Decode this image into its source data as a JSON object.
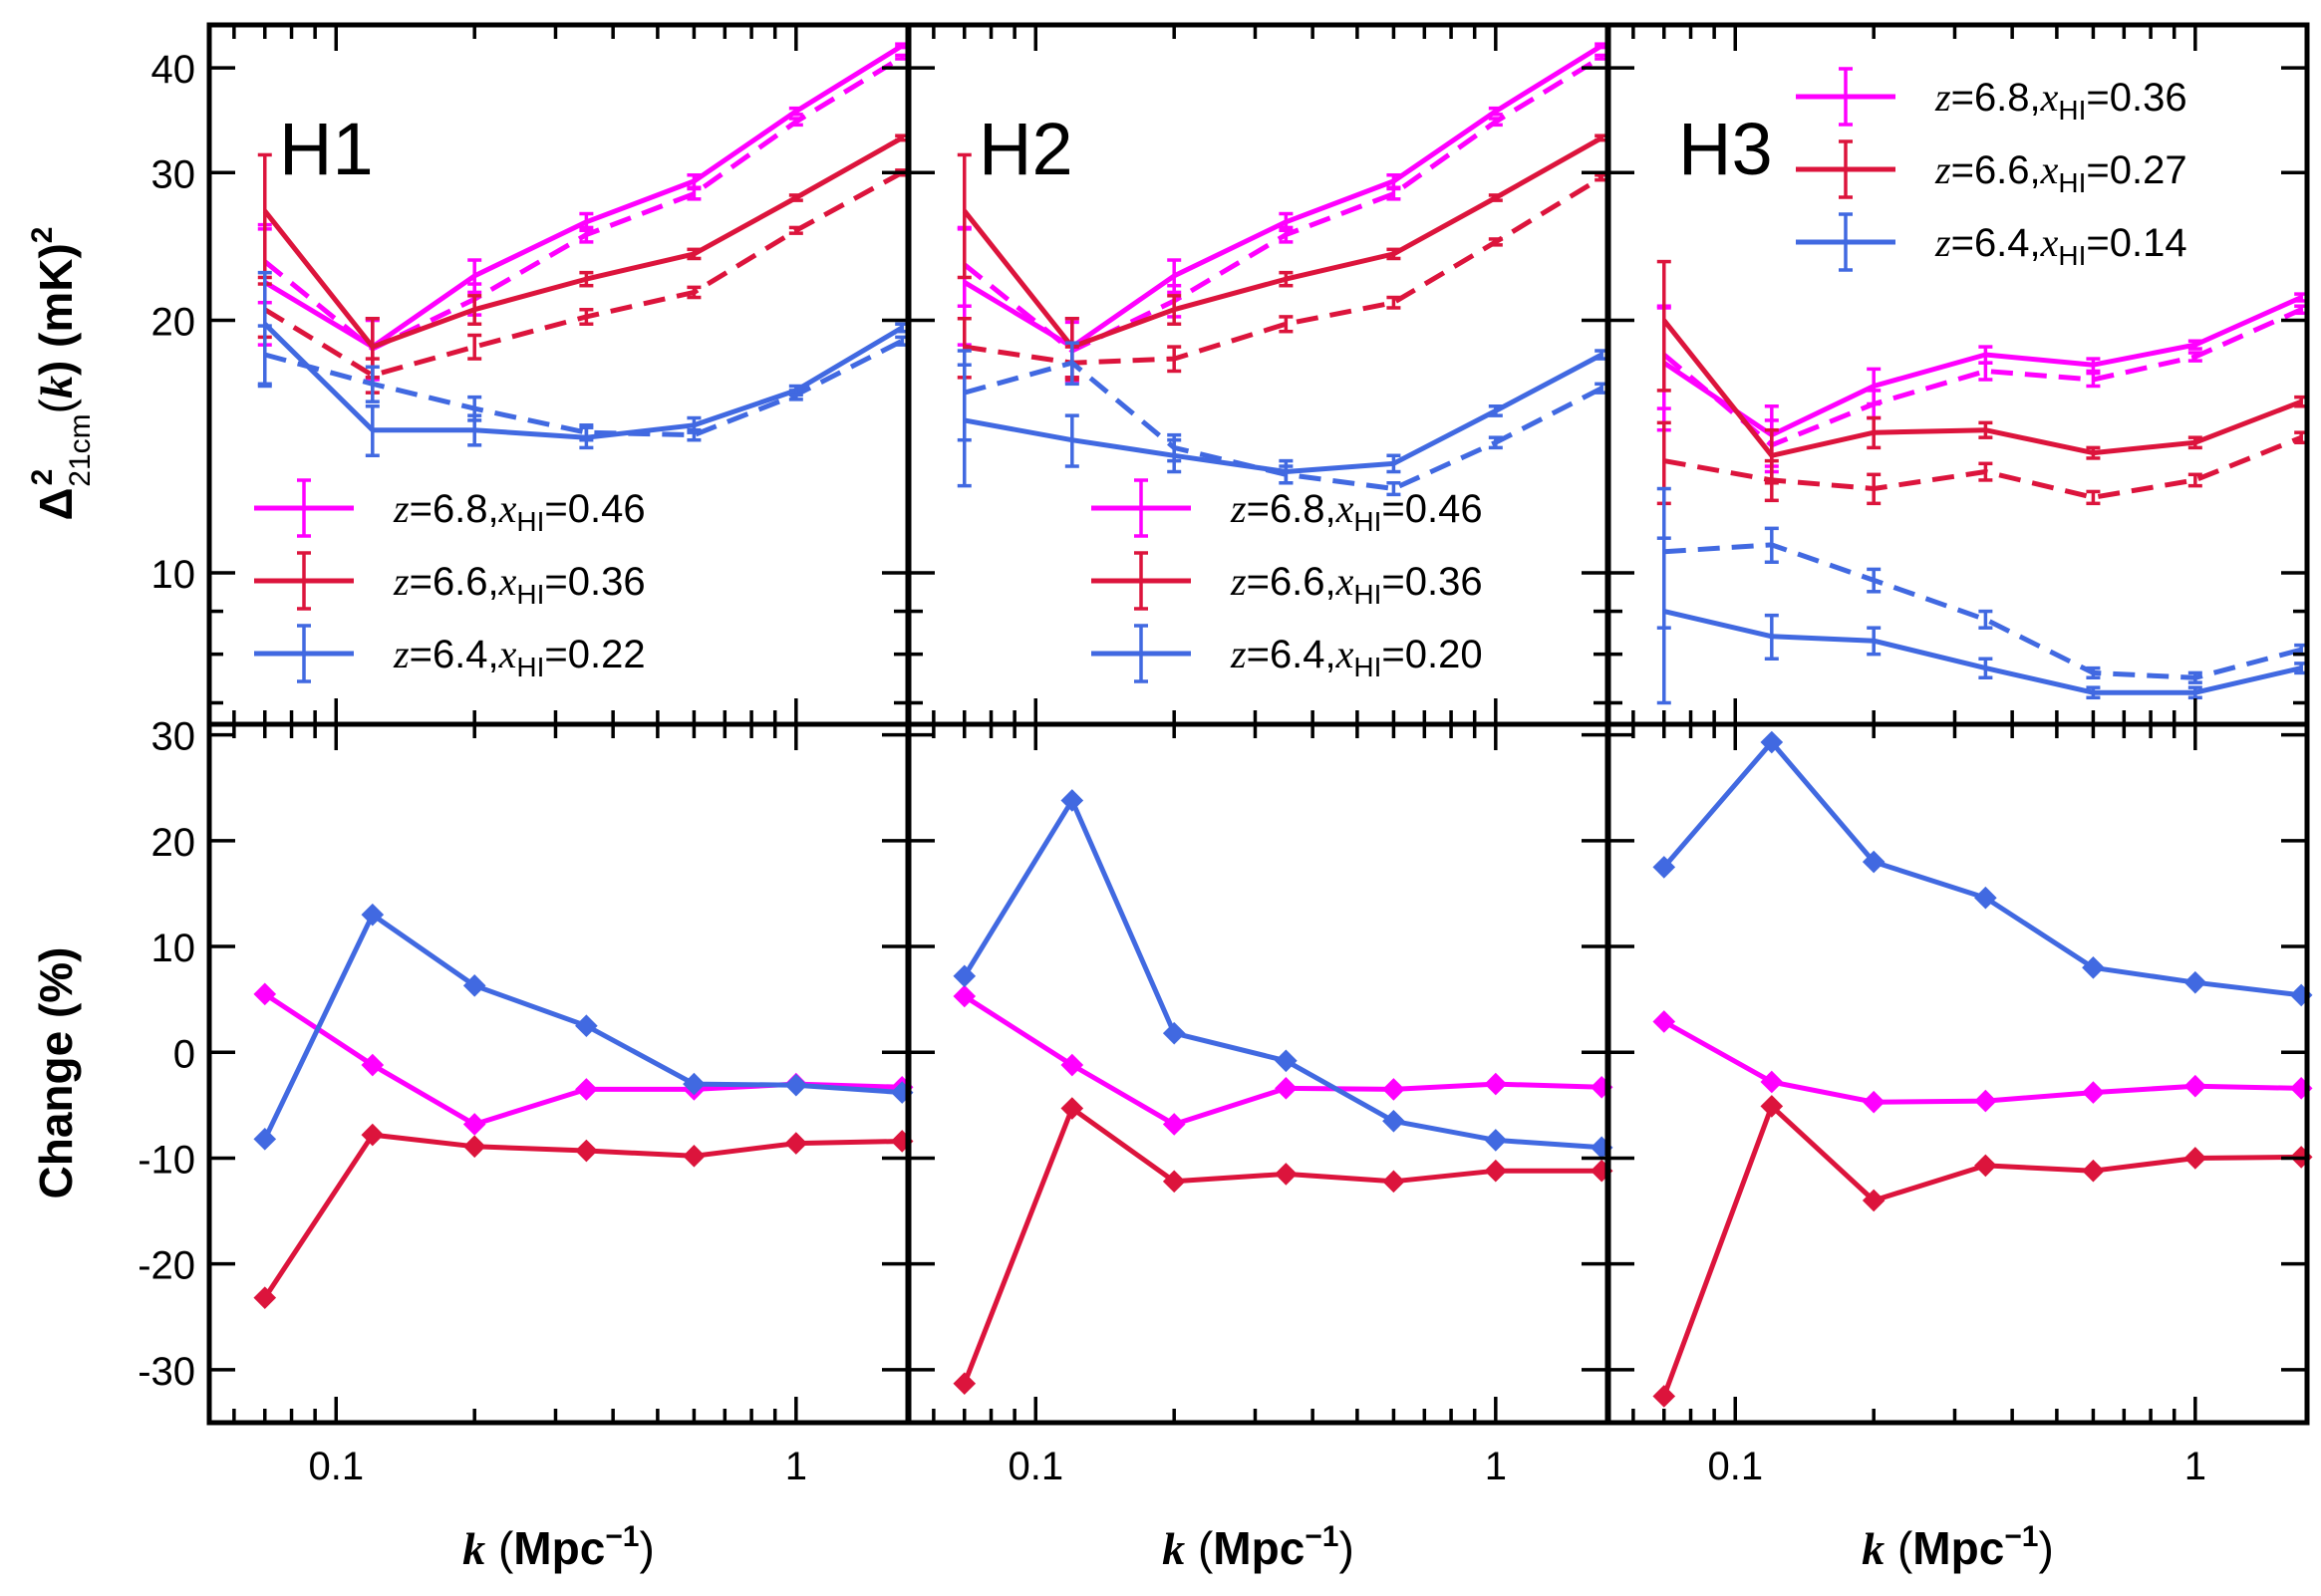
{
  "chart_data": {
    "type": "line",
    "x": [
      0.07,
      0.12,
      0.2,
      0.35,
      0.6,
      1.0,
      1.7
    ],
    "xscale": "log",
    "xlim": [
      0.053,
      1.75
    ],
    "xticks": [
      {
        "value": 0.1,
        "label": "0.1"
      },
      {
        "value": 1,
        "label": "1"
      }
    ],
    "xlabel": {
      "var": "k",
      "unit_pre": " (",
      "unit": "Mpc",
      "sup": "−1",
      "post": ")"
    },
    "top": {
      "yscale": "log",
      "ylim": [
        6.6,
        45
      ],
      "yticks": [
        {
          "value": 10,
          "label": "10"
        },
        {
          "value": 20,
          "label": "20"
        },
        {
          "value": 30,
          "label": "30"
        },
        {
          "value": 40,
          "label": "40"
        }
      ],
      "ylabel": "Δ²21cm(k) (mK)²"
    },
    "bottom": {
      "yscale": "linear",
      "ylim": [
        -35,
        31
      ],
      "yticks": [
        {
          "value": 30,
          "label": "30"
        },
        {
          "value": 20,
          "label": "20"
        },
        {
          "value": 10,
          "label": "10"
        },
        {
          "value": 0,
          "label": "0"
        },
        {
          "value": -10,
          "label": "-10"
        },
        {
          "value": -20,
          "label": "-20"
        },
        {
          "value": -30,
          "label": "-30"
        }
      ],
      "ylabel": "Change (%)"
    },
    "linestyles": {
      "solid": "solid",
      "dashed": "dashed"
    },
    "panels": [
      {
        "title": "H1",
        "legend_position": "lower-left",
        "series": [
          {
            "name": "z=6.8, x_HI=0.46",
            "z": "6.8",
            "xhi": "0.46",
            "color": "#ff00ff",
            "solid": [
              22.2,
              18.6,
              22.6,
              26.2,
              29.3,
              35.5,
              42.5
            ],
            "dashed": [
              23.5,
              18.5,
              21.2,
              25.3,
              28.3,
              34.5,
              41.2
            ],
            "solid_err": [
              3.5,
              1.5,
              1.0,
              0.6,
              0.5,
              0.3,
              0.2
            ],
            "dashed_err": [
              2.5,
              1.5,
              0.9,
              0.5,
              0.4,
              0.3,
              0.2
            ],
            "change": [
              5.5,
              -1.2,
              -6.8,
              -3.5,
              -3.5,
              -3.0,
              -3.3
            ]
          },
          {
            "name": "z=6.6, x_HI=0.36",
            "z": "6.6",
            "xhi": "0.36",
            "color": "#dc143c",
            "solid": [
              27.0,
              18.6,
              20.6,
              22.4,
              24.0,
              28.0,
              33.0
            ],
            "dashed": [
              20.6,
              17.2,
              18.6,
              20.2,
              21.6,
              25.6,
              30.0
            ],
            "solid_err": [
              4.5,
              1.5,
              0.8,
              0.4,
              0.3,
              0.2,
              0.2
            ],
            "dashed_err": [
              1.5,
              0.8,
              0.6,
              0.4,
              0.3,
              0.2,
              0.2
            ],
            "change": [
              -23.2,
              -7.8,
              -8.9,
              -9.3,
              -9.8,
              -8.6,
              -8.4
            ]
          },
          {
            "name": "z=6.4, x_HI=0.22",
            "z": "6.4",
            "xhi": "0.22",
            "color": "#4169e1",
            "solid": [
              19.8,
              14.8,
              14.8,
              14.5,
              15.0,
              16.5,
              19.6
            ],
            "dashed": [
              18.2,
              16.8,
              15.7,
              14.7,
              14.6,
              16.3,
              18.9
            ],
            "solid_err": [
              3.0,
              1.0,
              0.6,
              0.4,
              0.3,
              0.2,
              0.2
            ],
            "dashed_err": [
              1.5,
              0.8,
              0.5,
              0.3,
              0.2,
              0.2,
              0.2
            ],
            "change": [
              -8.2,
              13.0,
              6.3,
              2.5,
              -3.0,
              -3.1,
              -3.8
            ]
          }
        ]
      },
      {
        "title": "H2",
        "legend_position": "lower-right",
        "series": [
          {
            "name": "z=6.8, x_HI=0.46",
            "z": "6.8",
            "xhi": "0.46",
            "color": "#ff00ff",
            "solid": [
              22.2,
              18.6,
              22.6,
              26.2,
              29.3,
              35.5,
              42.5
            ],
            "dashed": [
              23.3,
              18.4,
              21.1,
              25.3,
              28.3,
              34.5,
              41.2
            ],
            "solid_err": [
              3.5,
              1.5,
              1.0,
              0.6,
              0.5,
              0.3,
              0.2
            ],
            "dashed_err": [
              2.5,
              1.5,
              0.9,
              0.5,
              0.4,
              0.3,
              0.2
            ],
            "change": [
              5.3,
              -1.2,
              -6.8,
              -3.4,
              -3.5,
              -3.0,
              -3.3
            ]
          },
          {
            "name": "z=6.6, x_HI=0.36",
            "z": "6.6",
            "xhi": "0.36",
            "color": "#dc143c",
            "solid": [
              27.0,
              18.6,
              20.6,
              22.4,
              24.0,
              28.0,
              33.0
            ],
            "dashed": [
              18.6,
              17.8,
              18.0,
              19.8,
              21.0,
              24.8,
              29.6
            ],
            "solid_err": [
              4.5,
              1.5,
              0.8,
              0.4,
              0.3,
              0.2,
              0.2
            ],
            "dashed_err": [
              1.5,
              0.8,
              0.6,
              0.4,
              0.3,
              0.2,
              0.2
            ],
            "change": [
              -31.3,
              -5.3,
              -12.2,
              -11.5,
              -12.2,
              -11.2,
              -11.2
            ]
          },
          {
            "name": "z=6.4, x_HI=0.20",
            "z": "6.4",
            "xhi": "0.20",
            "color": "#4169e1",
            "solid": [
              15.2,
              14.4,
              13.8,
              13.2,
              13.5,
              15.6,
              18.2
            ],
            "dashed": [
              16.4,
              17.8,
              14.1,
              13.1,
              12.6,
              14.3,
              16.6
            ],
            "solid_err": [
              2.5,
              1.0,
              0.6,
              0.4,
              0.3,
              0.2,
              0.2
            ],
            "dashed_err": [
              2.0,
              1.0,
              0.5,
              0.3,
              0.2,
              0.2,
              0.2
            ],
            "change": [
              7.2,
              23.8,
              1.8,
              -0.8,
              -6.5,
              -8.3,
              -9.0
            ]
          }
        ]
      },
      {
        "title": "H3",
        "legend_position": "upper-right",
        "series": [
          {
            "name": "z=6.8, x_HI=0.36",
            "z": "6.8",
            "xhi": "0.36",
            "color": "#ff00ff",
            "solid": [
              17.8,
              14.6,
              16.7,
              18.2,
              17.7,
              18.7,
              21.3
            ],
            "dashed": [
              18.2,
              14.2,
              15.9,
              17.4,
              17.0,
              18.1,
              20.6
            ],
            "solid_err": [
              3.0,
              1.2,
              0.8,
              0.4,
              0.3,
              0.2,
              0.2
            ],
            "dashed_err": [
              2.5,
              1.0,
              0.6,
              0.4,
              0.3,
              0.2,
              0.2
            ],
            "change": [
              2.9,
              -2.8,
              -4.7,
              -4.6,
              -3.8,
              -3.2,
              -3.4
            ]
          },
          {
            "name": "z=6.6, x_HI=0.27",
            "z": "6.6",
            "xhi": "0.27",
            "color": "#dc143c",
            "solid": [
              20.0,
              13.8,
              14.7,
              14.8,
              13.9,
              14.3,
              16.0
            ],
            "dashed": [
              13.6,
              12.9,
              12.6,
              13.2,
              12.3,
              12.9,
              14.5
            ],
            "solid_err": [
              3.5,
              1.0,
              0.6,
              0.3,
              0.2,
              0.2,
              0.2
            ],
            "dashed_err": [
              1.5,
              0.7,
              0.5,
              0.3,
              0.2,
              0.2,
              0.2
            ],
            "change": [
              -32.5,
              -5.1,
              -14.0,
              -10.7,
              -11.2,
              -10.0,
              -9.9
            ]
          },
          {
            "name": "z=6.4, x_HI=0.14",
            "z": "6.4",
            "xhi": "0.14",
            "color": "#4169e1",
            "solid": [
              9.0,
              8.4,
              8.3,
              7.7,
              7.2,
              7.2,
              7.7
            ],
            "dashed": [
              10.6,
              10.8,
              9.8,
              8.8,
              7.6,
              7.5,
              8.1
            ],
            "solid_err": [
              2.0,
              0.5,
              0.3,
              0.2,
              0.1,
              0.1,
              0.1
            ],
            "dashed_err": [
              2.0,
              0.5,
              0.3,
              0.2,
              0.1,
              0.1,
              0.1
            ],
            "change": [
              17.5,
              29.3,
              18.0,
              14.6,
              8.0,
              6.6,
              5.4
            ]
          }
        ]
      }
    ]
  }
}
